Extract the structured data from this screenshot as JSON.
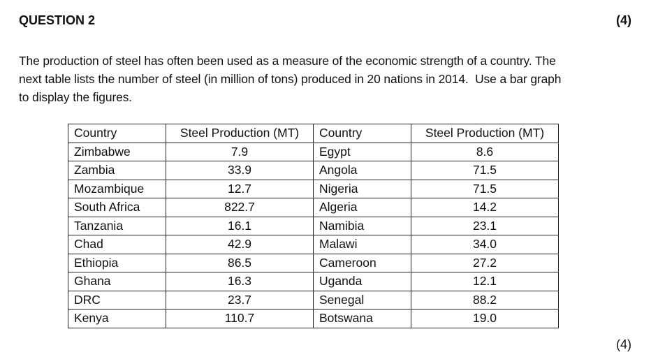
{
  "question": {
    "title": "QUESTION 2",
    "marks_top": "(4)",
    "intro_line1": "The production of steel has often been used as a measure of the economic strength of a country. The",
    "intro_line2": "next table lists the number of steel (in million of tons) produced in 20 nations in 2014.  Use a bar graph",
    "intro_line3": "to display the figures.",
    "marks_bottom": "(4)"
  },
  "table": {
    "headers": [
      "Country",
      "Steel Production (MT)",
      "Country",
      "Steel Production (MT)"
    ],
    "rows": [
      [
        "Zimbabwe",
        "7.9",
        "Egypt",
        "8.6"
      ],
      [
        "Zambia",
        "33.9",
        "Angola",
        "71.5"
      ],
      [
        "Mozambique",
        "12.7",
        "Nigeria",
        "71.5"
      ],
      [
        "South Africa",
        "822.7",
        "Algeria",
        "14.2"
      ],
      [
        "Tanzania",
        "16.1",
        "Namibia",
        "23.1"
      ],
      [
        "Chad",
        "42.9",
        "Malawi",
        "34.0"
      ],
      [
        "Ethiopia",
        "86.5",
        "Cameroon",
        "27.2"
      ],
      [
        "Ghana",
        "16.3",
        "Uganda",
        "12.1"
      ],
      [
        "DRC",
        "23.7",
        "Senegal",
        "88.2"
      ],
      [
        "Kenya",
        "110.7",
        "Botswana",
        "19.0"
      ]
    ]
  }
}
